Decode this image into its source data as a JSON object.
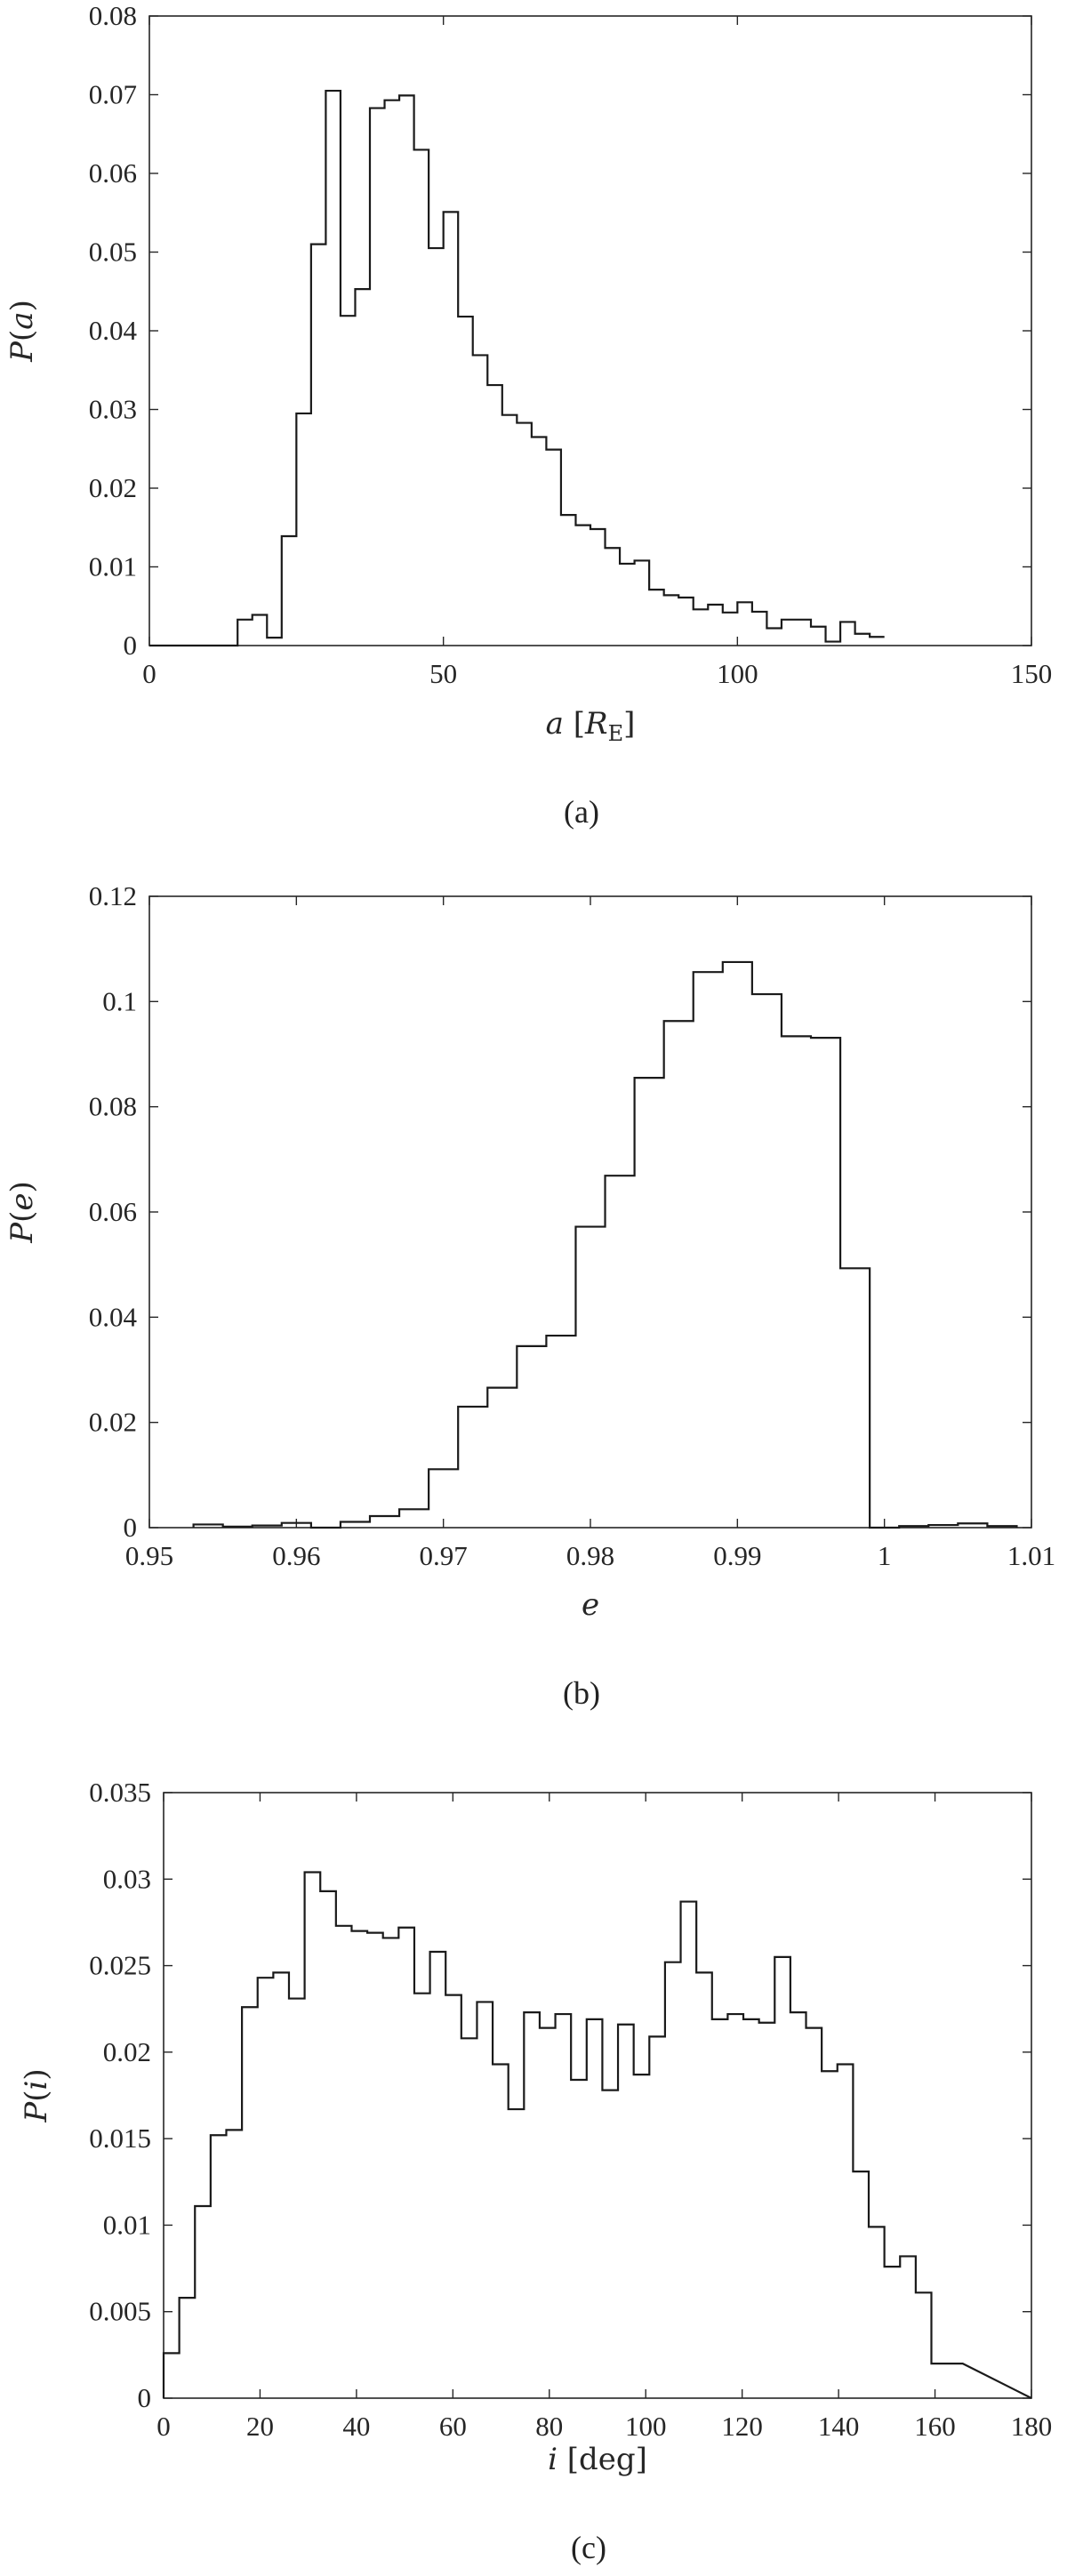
{
  "chart_data": [
    {
      "type": "step",
      "caption": "(a)",
      "xlabel_var": "a",
      "xlabel_unit": "R",
      "xlabel_unit_sub": "E",
      "ylabel_func": "P",
      "ylabel_var": "a",
      "xlim": [
        0,
        150
      ],
      "ylim": [
        0,
        0.08
      ],
      "xticks": [
        0,
        50,
        100,
        150
      ],
      "yticks": [
        0,
        0.01,
        0.02,
        0.03,
        0.04,
        0.05,
        0.06,
        0.07,
        0.08
      ],
      "bin_edges_start": 0,
      "bin_width": 2.5,
      "values": [
        0,
        0,
        0,
        0,
        0,
        0,
        0.0033,
        0.0039,
        0.001,
        0.0139,
        0.0295,
        0.051,
        0.0705,
        0.0419,
        0.0453,
        0.0683,
        0.0693,
        0.0699,
        0.063,
        0.0505,
        0.0551,
        0.0418,
        0.0369,
        0.0331,
        0.0293,
        0.0283,
        0.0265,
        0.0249,
        0.0166,
        0.0153,
        0.0148,
        0.0124,
        0.0104,
        0.0108,
        0.0071,
        0.0064,
        0.0061,
        0.0046,
        0.0052,
        0.0042,
        0.0055,
        0.0043,
        0.0022,
        0.0033,
        0.0033,
        0.0024,
        0.0005,
        0.003,
        0.0015,
        0.0011
      ]
    },
    {
      "type": "step",
      "caption": "(b)",
      "xlabel_var": "e",
      "ylabel_func": "P",
      "ylabel_var": "e",
      "xlim": [
        0.95,
        1.01
      ],
      "ylim": [
        0,
        0.12
      ],
      "xticks": [
        0.95,
        0.96,
        0.97,
        0.98,
        0.99,
        1,
        1.01
      ],
      "yticks": [
        0,
        0.02,
        0.04,
        0.06,
        0.08,
        0.1,
        0.12
      ],
      "bin_edges_start": 0.953,
      "bin_width": 0.002,
      "values": [
        0.0006,
        0.0002,
        0.0004,
        0.0009,
        0,
        0.0011,
        0.0022,
        0.0035,
        0.0111,
        0.023,
        0.0266,
        0.0345,
        0.0365,
        0.0572,
        0.0669,
        0.0855,
        0.0963,
        0.1056,
        0.1075,
        0.1014,
        0.0934,
        0.0931,
        0.0493,
        0,
        0.0003,
        0.0005,
        0.0008,
        0.0003
      ]
    },
    {
      "type": "step",
      "caption": "(c)",
      "xlabel_var": "i",
      "xlabel_unit": "deg",
      "ylabel_func": "P",
      "ylabel_var": "i",
      "xlim": [
        0,
        180
      ],
      "ylim": [
        0,
        0.035
      ],
      "xticks": [
        0,
        20,
        40,
        60,
        80,
        100,
        120,
        140,
        160,
        180
      ],
      "yticks": [
        0,
        0.005,
        0.01,
        0.015,
        0.02,
        0.025,
        0.03,
        0.035
      ],
      "bin_edges_start": 0,
      "bin_width": 3.25,
      "values": [
        0.0026,
        0.0058,
        0.0111,
        0.0152,
        0.0155,
        0.0226,
        0.0243,
        0.0246,
        0.0231,
        0.0304,
        0.0293,
        0.0273,
        0.027,
        0.0269,
        0.0266,
        0.0272,
        0.0234,
        0.0258,
        0.0233,
        0.0208,
        0.0229,
        0.0193,
        0.0167,
        0.0223,
        0.0214,
        0.0222,
        0.0184,
        0.0219,
        0.0178,
        0.0216,
        0.0187,
        0.0209,
        0.0252,
        0.0287,
        0.0246,
        0.0219,
        0.0222,
        0.0219,
        0.0217,
        0.0255,
        0.0223,
        0.0214,
        0.0189,
        0.0193,
        0.0131,
        0.0099,
        0.0076,
        0.0082,
        0.0061,
        0.002,
        0.002
      ]
    }
  ]
}
